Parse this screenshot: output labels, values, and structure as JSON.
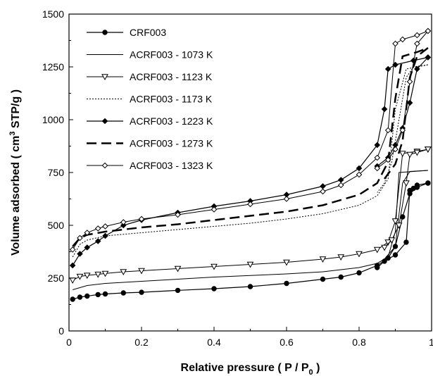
{
  "chart_data": {
    "type": "line",
    "xlabel": {
      "main": "Relative pressure ( P / P",
      "sub": "0",
      "tail": " )"
    },
    "ylabel": {
      "main": "Volume adsorbed ( cm",
      "sup": "3",
      "tail": " STP/g )"
    },
    "xlim": [
      0,
      1
    ],
    "ylim": [
      0,
      1500
    ],
    "x_ticks": [
      0,
      0.2,
      0.4,
      0.6,
      0.8,
      1
    ],
    "x_tick_labels": [
      "0",
      "0.2",
      "0.4",
      "0.6",
      "0.8",
      "1"
    ],
    "y_ticks": [
      0,
      250,
      500,
      750,
      1000,
      1250,
      1500
    ],
    "y_tick_labels": [
      "0",
      "250",
      "500",
      "750",
      "1000",
      "1250",
      "1500"
    ],
    "grid": false,
    "legend_position": "top-left",
    "series": [
      {
        "name": "CRF003",
        "marker": "filled-circle",
        "dash": "solid",
        "stroke_width": 1.2,
        "adsorption": [
          [
            0.01,
            150
          ],
          [
            0.03,
            160
          ],
          [
            0.05,
            165
          ],
          [
            0.08,
            172
          ],
          [
            0.1,
            175
          ],
          [
            0.15,
            180
          ],
          [
            0.2,
            183
          ],
          [
            0.3,
            192
          ],
          [
            0.4,
            200
          ],
          [
            0.5,
            210
          ],
          [
            0.6,
            225
          ],
          [
            0.7,
            245
          ],
          [
            0.75,
            255
          ],
          [
            0.8,
            275
          ],
          [
            0.85,
            310
          ],
          [
            0.88,
            345
          ],
          [
            0.9,
            400
          ],
          [
            0.92,
            540
          ],
          [
            0.94,
            650
          ],
          [
            0.96,
            680
          ],
          [
            0.99,
            700
          ]
        ],
        "desorption": [
          [
            0.99,
            700
          ],
          [
            0.96,
            690
          ],
          [
            0.95,
            675
          ],
          [
            0.94,
            665
          ],
          [
            0.93,
            420
          ],
          [
            0.9,
            360
          ],
          [
            0.87,
            330
          ],
          [
            0.85,
            300
          ]
        ]
      },
      {
        "name": "ACRF003 - 1073 K",
        "marker": "none",
        "dash": "solid",
        "stroke_width": 1,
        "adsorption": [
          [
            0.01,
            195
          ],
          [
            0.05,
            215
          ],
          [
            0.1,
            225
          ],
          [
            0.2,
            235
          ],
          [
            0.4,
            255
          ],
          [
            0.6,
            270
          ],
          [
            0.7,
            280
          ],
          [
            0.8,
            300
          ],
          [
            0.85,
            320
          ],
          [
            0.88,
            350
          ],
          [
            0.9,
            470
          ],
          [
            0.91,
            750
          ],
          [
            0.99,
            760
          ]
        ],
        "desorption": [
          [
            0.99,
            760
          ],
          [
            0.94,
            755
          ],
          [
            0.92,
            700
          ],
          [
            0.9,
            400
          ],
          [
            0.87,
            340
          ],
          [
            0.85,
            320
          ]
        ]
      },
      {
        "name": "ACRF003 - 1123 K",
        "marker": "open-triangle-down",
        "dash": "solid",
        "stroke_width": 1,
        "adsorption": [
          [
            0.01,
            240
          ],
          [
            0.03,
            258
          ],
          [
            0.05,
            263
          ],
          [
            0.08,
            268
          ],
          [
            0.1,
            272
          ],
          [
            0.15,
            280
          ],
          [
            0.2,
            285
          ],
          [
            0.3,
            295
          ],
          [
            0.4,
            305
          ],
          [
            0.5,
            315
          ],
          [
            0.6,
            325
          ],
          [
            0.7,
            340
          ],
          [
            0.75,
            350
          ],
          [
            0.8,
            365
          ],
          [
            0.85,
            385
          ],
          [
            0.88,
            420
          ],
          [
            0.9,
            520
          ],
          [
            0.92,
            840
          ],
          [
            0.96,
            850
          ],
          [
            0.99,
            860
          ]
        ],
        "desorption": [
          [
            0.99,
            860
          ],
          [
            0.96,
            845
          ],
          [
            0.94,
            835
          ],
          [
            0.93,
            700
          ],
          [
            0.91,
            500
          ],
          [
            0.89,
            430
          ],
          [
            0.87,
            395
          ]
        ]
      },
      {
        "name": "ACRF003 - 1173 K",
        "marker": "none",
        "dash": "dotted",
        "stroke_width": 1,
        "adsorption": [
          [
            0.01,
            350
          ],
          [
            0.03,
            410
          ],
          [
            0.05,
            430
          ],
          [
            0.1,
            450
          ],
          [
            0.2,
            465
          ],
          [
            0.3,
            480
          ],
          [
            0.4,
            495
          ],
          [
            0.5,
            510
          ],
          [
            0.6,
            530
          ],
          [
            0.7,
            555
          ],
          [
            0.8,
            595
          ],
          [
            0.85,
            640
          ],
          [
            0.88,
            720
          ],
          [
            0.9,
            1050
          ],
          [
            0.93,
            1240
          ],
          [
            0.99,
            1260
          ]
        ],
        "desorption": [
          [
            0.99,
            1260
          ],
          [
            0.95,
            1250
          ],
          [
            0.93,
            1200
          ],
          [
            0.91,
            1000
          ],
          [
            0.89,
            800
          ],
          [
            0.87,
            700
          ],
          [
            0.85,
            655
          ]
        ]
      },
      {
        "name": "ACRF003 - 1223 K",
        "marker": "filled-diamond",
        "dash": "solid",
        "stroke_width": 1.2,
        "adsorption": [
          [
            0.01,
            310
          ],
          [
            0.03,
            365
          ],
          [
            0.05,
            395
          ],
          [
            0.08,
            425
          ],
          [
            0.1,
            450
          ],
          [
            0.15,
            500
          ],
          [
            0.2,
            525
          ],
          [
            0.3,
            560
          ],
          [
            0.4,
            590
          ],
          [
            0.5,
            615
          ],
          [
            0.6,
            645
          ],
          [
            0.7,
            685
          ],
          [
            0.75,
            715
          ],
          [
            0.8,
            770
          ],
          [
            0.85,
            880
          ],
          [
            0.87,
            1050
          ],
          [
            0.88,
            1240
          ],
          [
            0.9,
            1260
          ],
          [
            0.95,
            1280
          ],
          [
            0.99,
            1295
          ]
        ],
        "desorption": [
          [
            0.99,
            1295
          ],
          [
            0.96,
            1240
          ],
          [
            0.94,
            1080
          ],
          [
            0.92,
            960
          ],
          [
            0.9,
            880
          ],
          [
            0.88,
            820
          ],
          [
            0.85,
            780
          ]
        ]
      },
      {
        "name": "ACRF003 - 1273 K",
        "marker": "none",
        "dash": "long-dash",
        "stroke_width": 2.5,
        "adsorption": [
          [
            0.01,
            400
          ],
          [
            0.03,
            440
          ],
          [
            0.05,
            455
          ],
          [
            0.1,
            470
          ],
          [
            0.2,
            490
          ],
          [
            0.3,
            505
          ],
          [
            0.4,
            525
          ],
          [
            0.5,
            545
          ],
          [
            0.6,
            565
          ],
          [
            0.7,
            595
          ],
          [
            0.8,
            645
          ],
          [
            0.85,
            700
          ],
          [
            0.88,
            800
          ],
          [
            0.9,
            1100
          ],
          [
            0.92,
            1300
          ],
          [
            0.96,
            1320
          ],
          [
            0.99,
            1340
          ]
        ],
        "desorption": [
          [
            0.99,
            1340
          ],
          [
            0.96,
            1300
          ],
          [
            0.94,
            1200
          ],
          [
            0.92,
            900
          ],
          [
            0.9,
            790
          ],
          [
            0.87,
            720
          ]
        ]
      },
      {
        "name": "ACRF003 - 1323 K",
        "marker": "open-diamond",
        "dash": "solid",
        "stroke_width": 1,
        "adsorption": [
          [
            0.01,
            385
          ],
          [
            0.03,
            440
          ],
          [
            0.05,
            465
          ],
          [
            0.08,
            485
          ],
          [
            0.1,
            495
          ],
          [
            0.15,
            515
          ],
          [
            0.2,
            530
          ],
          [
            0.3,
            550
          ],
          [
            0.4,
            575
          ],
          [
            0.5,
            600
          ],
          [
            0.6,
            625
          ],
          [
            0.7,
            660
          ],
          [
            0.75,
            690
          ],
          [
            0.8,
            740
          ],
          [
            0.85,
            820
          ],
          [
            0.88,
            950
          ],
          [
            0.9,
            1360
          ],
          [
            0.92,
            1380
          ],
          [
            0.96,
            1400
          ],
          [
            0.99,
            1420
          ]
        ],
        "desorption": [
          [
            0.99,
            1420
          ],
          [
            0.96,
            1360
          ],
          [
            0.94,
            1180
          ],
          [
            0.92,
            950
          ],
          [
            0.9,
            860
          ],
          [
            0.88,
            810
          ],
          [
            0.85,
            770
          ]
        ]
      }
    ]
  }
}
